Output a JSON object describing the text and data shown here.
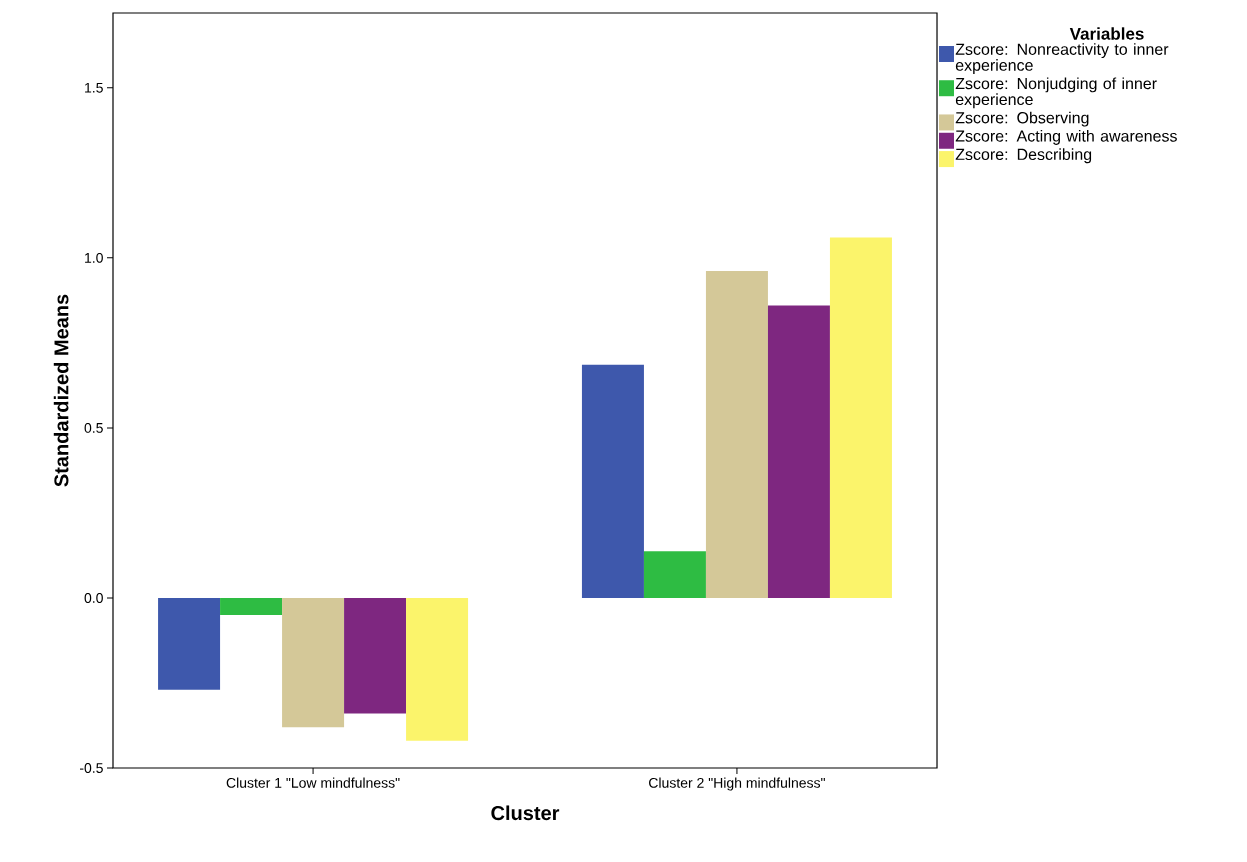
{
  "chart_data": {
    "type": "bar",
    "xlabel": "Cluster",
    "ylabel": "Standardized Means",
    "legend_title": "Variables",
    "legend": "top right",
    "categories": [
      "Cluster 1 \"Low mindfulness\"",
      "Cluster 2 \"High mindfulness\""
    ],
    "ylim": [
      -0.5,
      1.72
    ],
    "yticks": [
      {
        "value": -0.5,
        "label": "-0.5"
      },
      {
        "value": 0,
        "label": "0.0"
      },
      {
        "value": 0.5,
        "label": "0.5"
      },
      {
        "value": 1,
        "label": "1.0"
      },
      {
        "value": 1.5,
        "label": "1.5"
      }
    ],
    "series": [
      {
        "name": "Zscore:  Nonreactivity to inner experience",
        "color": "#3e58ac",
        "values": [
          -0.27,
          0.686
        ]
      },
      {
        "name": "Zscore:  Nonjudging of inner experience",
        "color": "#2ebc43",
        "values": [
          -0.05,
          0.137
        ]
      },
      {
        "name": "Zscore:  Observing",
        "color": "#d4c898",
        "values": [
          -0.38,
          0.961
        ]
      },
      {
        "name": "Zscore:  Acting with awareness",
        "color": "#7e2780",
        "values": [
          -0.34,
          0.86
        ]
      },
      {
        "name": "Zscore:  Describing",
        "color": "#fbf46b",
        "values": [
          -0.42,
          1.06
        ]
      }
    ]
  }
}
